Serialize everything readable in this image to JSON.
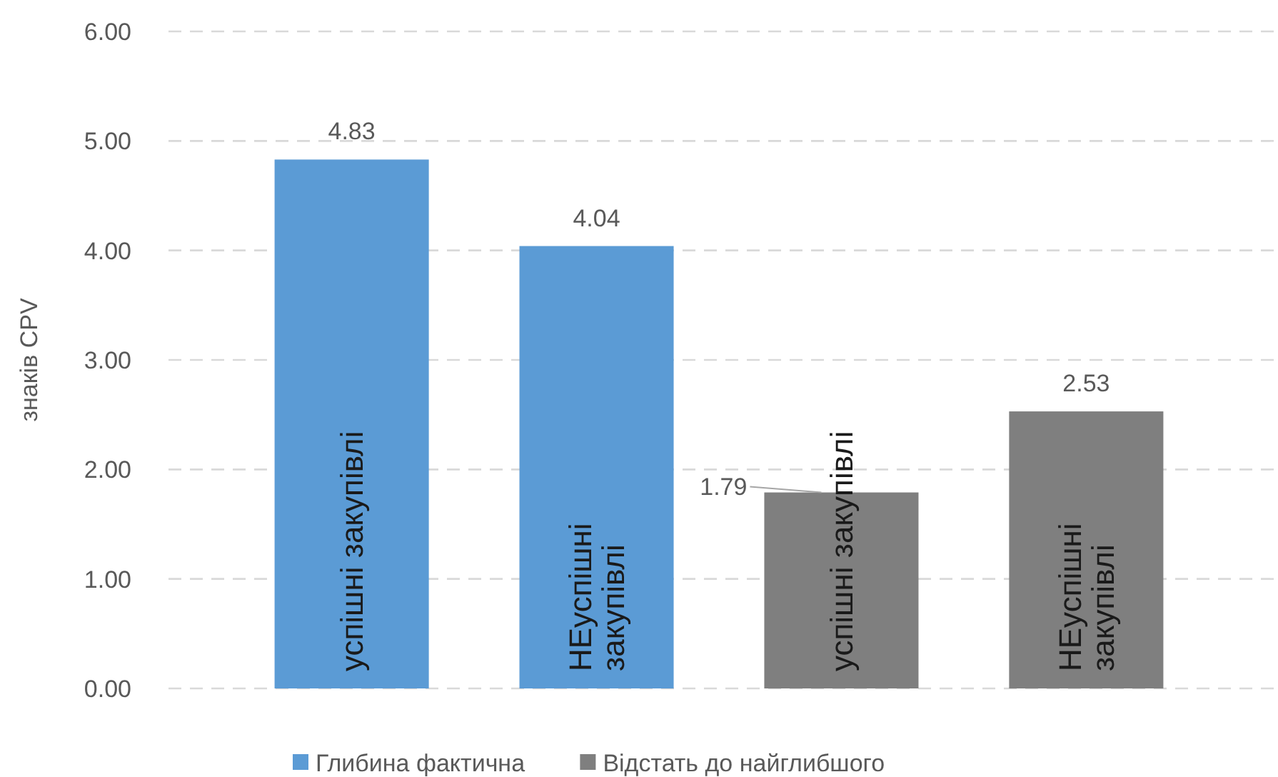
{
  "chart_data": {
    "type": "bar",
    "stacked": true,
    "ylabel": "знаків CPV",
    "categories": [
      "успішні закупівлі",
      "НЕуспішні закупівлі",
      "успішні закупівлі",
      "НЕуспішні закупівлі"
    ],
    "series": [
      {
        "name": "Глибина фактична",
        "color": "#5b9bd5",
        "values": [
          4.83,
          4.04,
          null,
          null
        ]
      },
      {
        "name": "Відстать до найглибшого",
        "color": "#7f7f7f",
        "values": [
          null,
          null,
          1.79,
          2.53
        ]
      }
    ],
    "ylim": [
      0,
      6
    ],
    "yticks": [
      {
        "value": 0,
        "label": "0.00"
      },
      {
        "value": 1,
        "label": "1.00"
      },
      {
        "value": 2,
        "label": "2.00"
      },
      {
        "value": 3,
        "label": "3.00"
      },
      {
        "value": 4,
        "label": "4.00"
      },
      {
        "value": 5,
        "label": "5.00"
      },
      {
        "value": 6,
        "label": "6.00"
      }
    ],
    "grid": "y",
    "data_labels": true,
    "legend": "bottom",
    "tick_labels": "y"
  }
}
